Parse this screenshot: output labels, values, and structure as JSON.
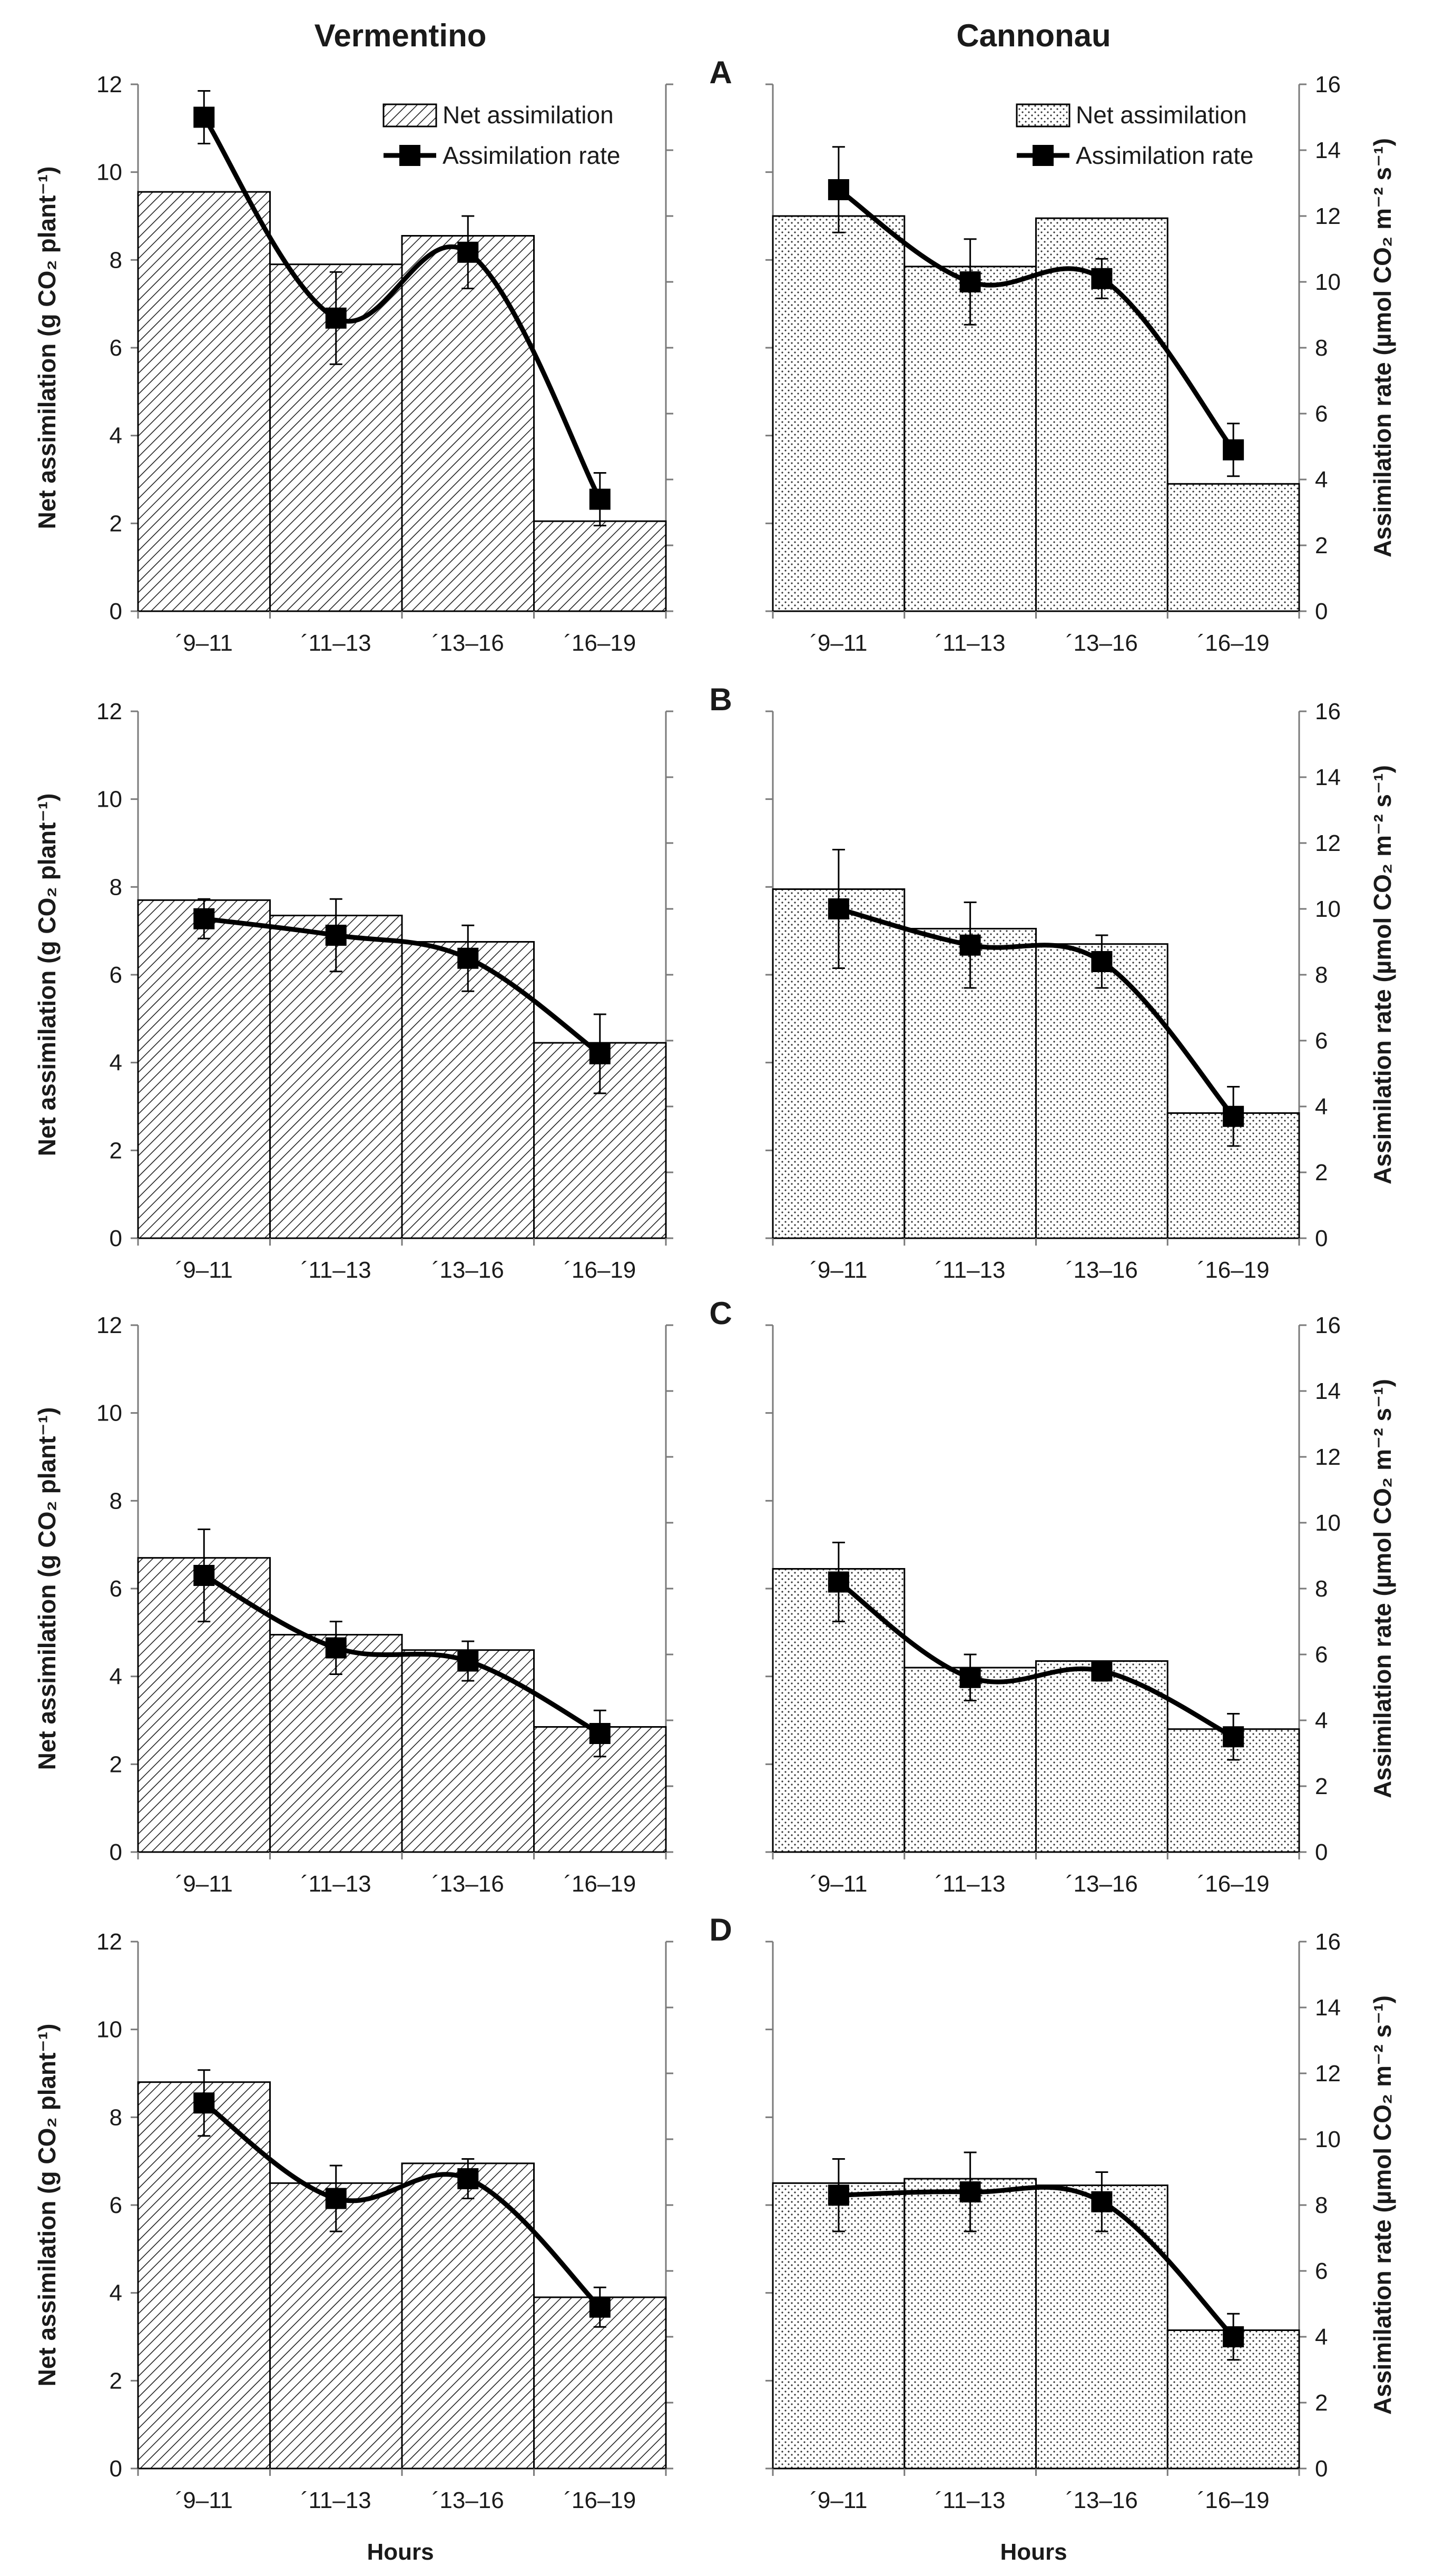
{
  "figure": {
    "columns": [
      "Vermentino",
      "Cannonau"
    ],
    "xlabel": "Hours",
    "ylabel_left": "Net assimilation (g CO₂ plant⁻¹)",
    "ylabel_right": "Assimilation rate (µmol CO₂ m⁻² s⁻¹)",
    "legend": {
      "bars": "Net assimilation",
      "line": "Assimilation rate"
    },
    "colors": {
      "bar_fill_vermentino": "hatched",
      "bar_fill_cannonau": "dotted",
      "line": "#000000"
    }
  },
  "chart_data": [
    {
      "panel": "A",
      "cultivar": "Vermentino",
      "type": "bar",
      "categories": [
        "´9–11",
        "´11–13",
        "´13–16",
        "´16–19"
      ],
      "series": [
        {
          "name": "Net assimilation",
          "axis": "left",
          "values": [
            9.55,
            7.9,
            8.55,
            2.05
          ]
        },
        {
          "name": "Assimilation rate",
          "axis": "right",
          "type": "line",
          "values": [
            15.0,
            8.9,
            10.9,
            3.4
          ],
          "error": [
            0.8,
            1.4,
            1.1,
            0.8
          ]
        }
      ],
      "ylim_left": [
        0,
        12
      ],
      "ylim_right": [
        0,
        16
      ],
      "legend": "top-right"
    },
    {
      "panel": "A",
      "cultivar": "Cannonau",
      "type": "bar",
      "categories": [
        "´9–11",
        "´11–13",
        "´13–16",
        "´16–19"
      ],
      "series": [
        {
          "name": "Net assimilation",
          "axis": "left",
          "values": [
            9.0,
            7.85,
            8.95,
            2.9
          ]
        },
        {
          "name": "Assimilation rate",
          "axis": "right",
          "type": "line",
          "values": [
            12.8,
            10.0,
            10.1,
            4.9
          ],
          "error": [
            1.3,
            1.3,
            0.6,
            0.8
          ]
        }
      ],
      "ylim_left": [
        0,
        12
      ],
      "ylim_right": [
        0,
        16
      ],
      "legend": "top-right"
    },
    {
      "panel": "B",
      "cultivar": "Vermentino",
      "type": "bar",
      "categories": [
        "´9–11",
        "´11–13",
        "´13–16",
        "´16–19"
      ],
      "series": [
        {
          "name": "Net assimilation",
          "axis": "left",
          "values": [
            7.7,
            7.35,
            6.75,
            4.45
          ]
        },
        {
          "name": "Assimilation rate",
          "axis": "right",
          "type": "line",
          "values": [
            9.7,
            9.2,
            8.5,
            5.6
          ],
          "error": [
            0.6,
            1.1,
            1.0,
            1.2
          ]
        }
      ],
      "ylim_left": [
        0,
        12
      ],
      "ylim_right": [
        0,
        16
      ]
    },
    {
      "panel": "B",
      "cultivar": "Cannonau",
      "type": "bar",
      "categories": [
        "´9–11",
        "´11–13",
        "´13–16",
        "´16–19"
      ],
      "series": [
        {
          "name": "Net assimilation",
          "axis": "left",
          "values": [
            7.95,
            7.05,
            6.7,
            2.85
          ]
        },
        {
          "name": "Assimilation rate",
          "axis": "right",
          "type": "line",
          "values": [
            10.0,
            8.9,
            8.4,
            3.7
          ],
          "error": [
            1.8,
            1.3,
            0.8,
            0.9
          ]
        }
      ],
      "ylim_left": [
        0,
        12
      ],
      "ylim_right": [
        0,
        16
      ]
    },
    {
      "panel": "C",
      "cultivar": "Vermentino",
      "type": "bar",
      "categories": [
        "´9–11",
        "´11–13",
        "´13–16",
        "´16–19"
      ],
      "series": [
        {
          "name": "Net assimilation",
          "axis": "left",
          "values": [
            6.7,
            4.95,
            4.6,
            2.85
          ]
        },
        {
          "name": "Assimilation rate",
          "axis": "right",
          "type": "line",
          "values": [
            8.4,
            6.2,
            5.8,
            3.6
          ],
          "error": [
            1.4,
            0.8,
            0.6,
            0.7
          ]
        }
      ],
      "ylim_left": [
        0,
        12
      ],
      "ylim_right": [
        0,
        16
      ]
    },
    {
      "panel": "C",
      "cultivar": "Cannonau",
      "type": "bar",
      "categories": [
        "´9–11",
        "´11–13",
        "´13–16",
        "´16–19"
      ],
      "series": [
        {
          "name": "Net assimilation",
          "axis": "left",
          "values": [
            6.45,
            4.2,
            4.35,
            2.8
          ]
        },
        {
          "name": "Assimilation rate",
          "axis": "right",
          "type": "line",
          "values": [
            8.2,
            5.3,
            5.5,
            3.5
          ],
          "error": [
            1.2,
            0.7,
            0.3,
            0.7
          ]
        }
      ],
      "ylim_left": [
        0,
        12
      ],
      "ylim_right": [
        0,
        16
      ]
    },
    {
      "panel": "D",
      "cultivar": "Vermentino",
      "type": "bar",
      "categories": [
        "´9–11",
        "´11–13",
        "´13–16",
        "´16–19"
      ],
      "series": [
        {
          "name": "Net assimilation",
          "axis": "left",
          "values": [
            8.8,
            6.5,
            6.95,
            3.9
          ]
        },
        {
          "name": "Assimilation rate",
          "axis": "right",
          "type": "line",
          "values": [
            11.1,
            8.2,
            8.8,
            4.9
          ],
          "error": [
            1.0,
            1.0,
            0.6,
            0.6
          ]
        }
      ],
      "ylim_left": [
        0,
        12
      ],
      "ylim_right": [
        0,
        16
      ]
    },
    {
      "panel": "D",
      "cultivar": "Cannonau",
      "type": "bar",
      "categories": [
        "´9–11",
        "´11–13",
        "´13–16",
        "´16–19"
      ],
      "series": [
        {
          "name": "Net assimilation",
          "axis": "left",
          "values": [
            6.5,
            6.6,
            6.45,
            3.15
          ]
        },
        {
          "name": "Assimilation rate",
          "axis": "right",
          "type": "line",
          "values": [
            8.3,
            8.4,
            8.1,
            4.0
          ],
          "error": [
            1.1,
            1.2,
            0.9,
            0.7
          ]
        }
      ],
      "ylim_left": [
        0,
        12
      ],
      "ylim_right": [
        0,
        16
      ]
    }
  ]
}
